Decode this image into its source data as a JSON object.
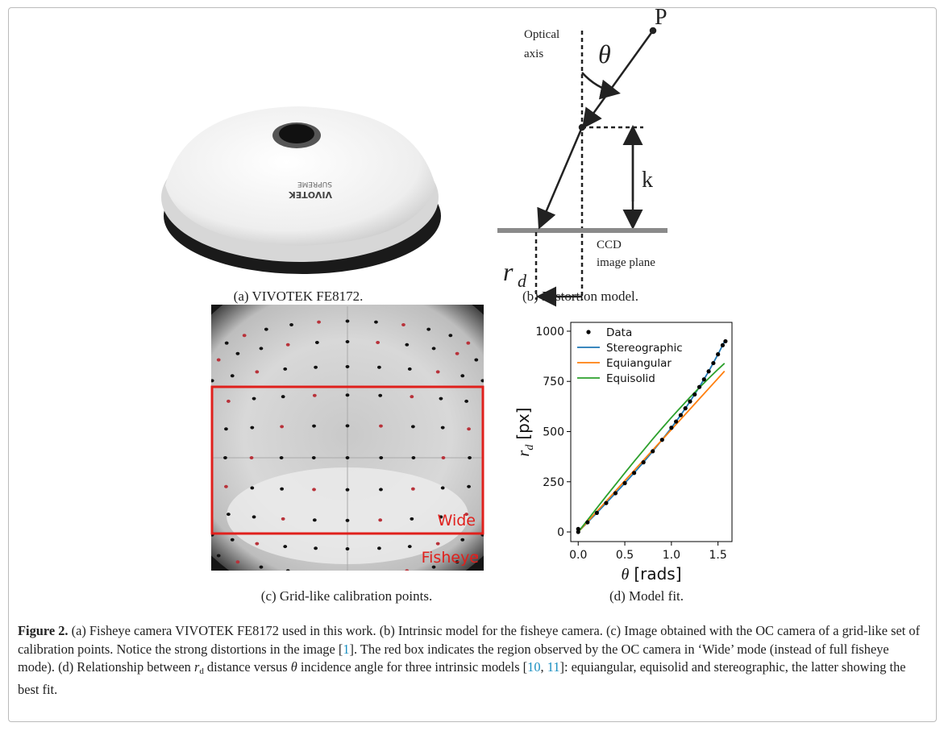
{
  "panels": {
    "a": {
      "caption": "(a) VIVOTEK FE8172.",
      "brand": "VIVOTEK",
      "model": "SUPREME"
    },
    "b": {
      "caption": "(b) Distortion model.",
      "axis_label": [
        "Optical",
        "axis"
      ],
      "angle": "θ",
      "point": "P",
      "height": "k",
      "radius_var": "r",
      "radius_sub": "d",
      "plane_label": [
        "CCD",
        "image plane"
      ]
    },
    "c": {
      "caption": "(c) Grid-like calibration points.",
      "wide": "Wide",
      "fisheye": "Fisheye"
    },
    "d": {
      "caption": "(d) Model fit."
    }
  },
  "chart_data": {
    "type": "line",
    "xlabel": {
      "var": "θ",
      "unit": "[rads]"
    },
    "ylabel": {
      "var": "r",
      "sub": "d",
      "unit": "[px]"
    },
    "xlim": [
      -0.08,
      1.65
    ],
    "ylim": [
      -48,
      1044
    ],
    "xticks": [
      {
        "value": 0,
        "label": "0.0"
      },
      {
        "value": 0.5,
        "label": "0.5"
      },
      {
        "value": 1,
        "label": "1.0"
      },
      {
        "value": 1.5,
        "label": "1.5"
      }
    ],
    "yticks": [
      0,
      250,
      500,
      750,
      1000
    ],
    "legend": "upper left",
    "series": [
      {
        "name": "Data",
        "color": "#000000",
        "style": "points",
        "x": [
          0,
          0,
          0.1,
          0.2,
          0.3,
          0.4,
          0.5,
          0.6,
          0.7,
          0.8,
          0.9,
          1.0,
          1.05,
          1.1,
          1.15,
          1.2,
          1.25,
          1.3,
          1.35,
          1.4,
          1.45,
          1.5,
          1.55,
          1.58
        ],
        "values": [
          15,
          0,
          48,
          95,
          144,
          193,
          243,
          294,
          347,
          402,
          459,
          519,
          550,
          582,
          616,
          650,
          685,
          722,
          760,
          800,
          841,
          885,
          930,
          950
        ]
      },
      {
        "name": "Stereographic",
        "color": "#1f77b4",
        "style": "line",
        "x": [
          0,
          0.1,
          0.2,
          0.3,
          0.4,
          0.5,
          0.6,
          0.7,
          0.8,
          0.9,
          1.0,
          1.1,
          1.2,
          1.3,
          1.4,
          1.5,
          1.57
        ],
        "values": [
          0,
          48,
          95,
          144,
          193,
          243,
          294,
          347,
          402,
          459,
          519,
          582,
          650,
          722,
          800,
          885,
          949
        ]
      },
      {
        "name": "Equiangular",
        "color": "#ff7f0e",
        "style": "line",
        "x": [
          0,
          0.1,
          0.2,
          0.3,
          0.4,
          0.5,
          0.6,
          0.7,
          0.8,
          0.9,
          1.0,
          1.1,
          1.2,
          1.3,
          1.4,
          1.5,
          1.57
        ],
        "values": [
          0,
          51,
          102,
          153,
          204,
          255,
          306,
          357,
          408,
          459,
          510,
          561,
          612,
          663,
          714,
          765,
          801
        ]
      },
      {
        "name": "Equisolid",
        "color": "#2ca02c",
        "style": "line",
        "x": [
          0,
          0.1,
          0.2,
          0.3,
          0.4,
          0.5,
          0.6,
          0.7,
          0.8,
          0.9,
          1.0,
          1.1,
          1.2,
          1.3,
          1.4,
          1.5,
          1.57
        ],
        "values": [
          0,
          59,
          119,
          178,
          236,
          294,
          351,
          407,
          463,
          517,
          570,
          621,
          671,
          719,
          765,
          810,
          840
        ]
      }
    ]
  },
  "caption": [
    {
      "kind": "bold",
      "text": "Figure 2."
    },
    {
      "kind": "plain",
      "text": " (a) Fisheye camera VIVOTEK FE8172 used in this work. (b) Intrinsic model for the fisheye camera. (c) Image obtained with the OC camera of a grid-like set of calibration points. Notice the strong distortions in the image "
    },
    {
      "kind": "plain",
      "text": "["
    },
    {
      "kind": "ref",
      "text": "1"
    },
    {
      "kind": "plain",
      "text": "]. The red box indicates the region observed by the OC camera in ‘Wide’ mode (instead of full fisheye mode). (d) Relationship between "
    },
    {
      "kind": "italic",
      "text": "r"
    },
    {
      "kind": "sub",
      "text": "d"
    },
    {
      "kind": "plain",
      "text": " distance versus "
    },
    {
      "kind": "italic",
      "text": "θ"
    },
    {
      "kind": "plain",
      "text": " incidence angle for three intrinsic models ["
    },
    {
      "kind": "ref",
      "text": "10"
    },
    {
      "kind": "plain",
      "text": ", "
    },
    {
      "kind": "ref",
      "text": "11"
    },
    {
      "kind": "plain",
      "text": "]: equiangular, equisolid and stereographic, the latter showing the best fit."
    }
  ]
}
